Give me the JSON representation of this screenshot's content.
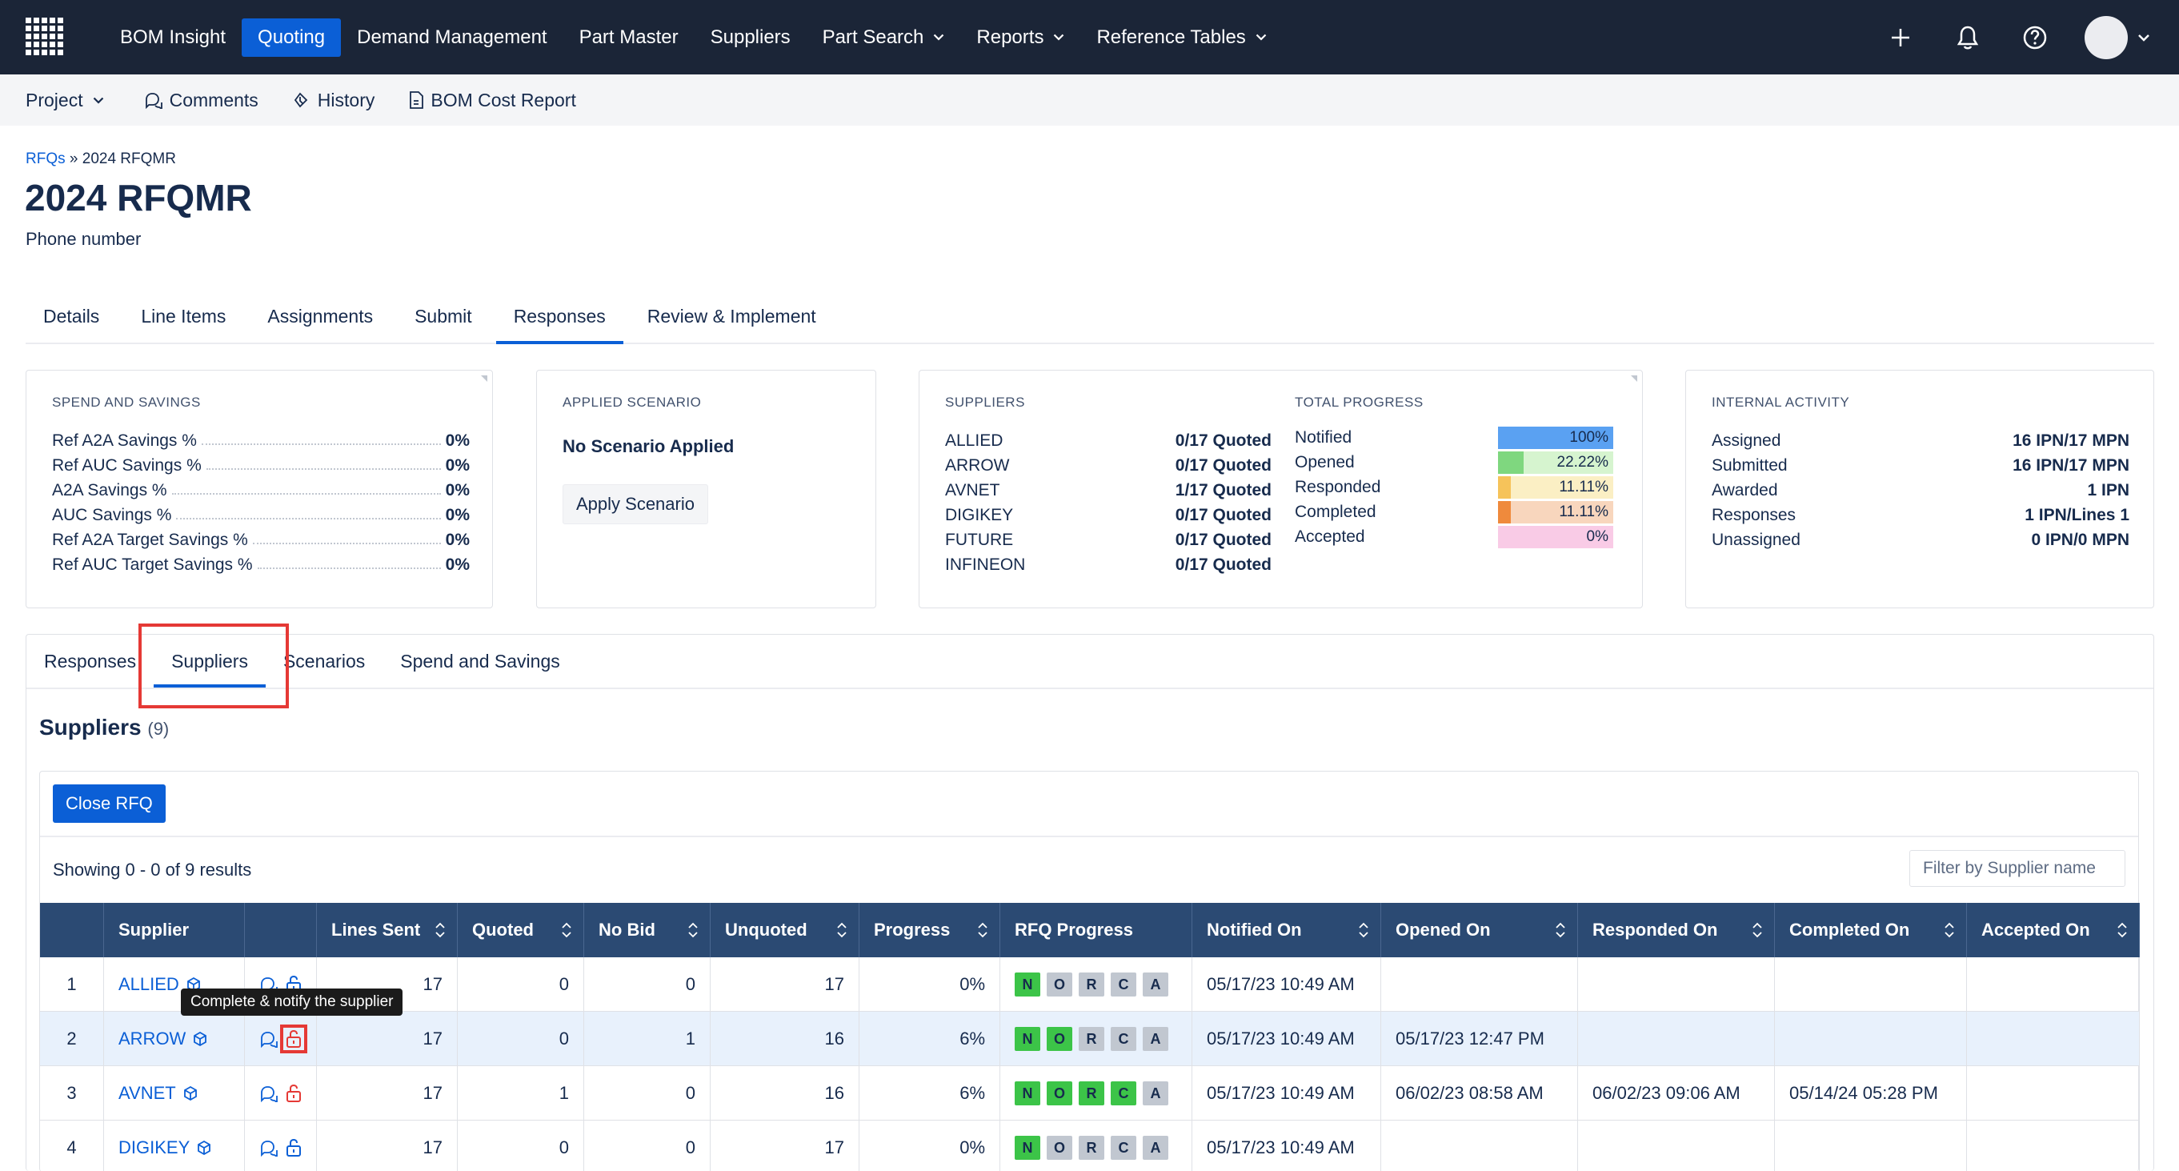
{
  "nav": {
    "items": [
      {
        "label": "BOM Insight",
        "active": false,
        "dropdown": false
      },
      {
        "label": "Quoting",
        "active": true,
        "dropdown": false
      },
      {
        "label": "Demand Management",
        "active": false,
        "dropdown": false
      },
      {
        "label": "Part Master",
        "active": false,
        "dropdown": false
      },
      {
        "label": "Suppliers",
        "active": false,
        "dropdown": false
      },
      {
        "label": "Part Search",
        "active": false,
        "dropdown": true
      },
      {
        "label": "Reports",
        "active": false,
        "dropdown": true
      },
      {
        "label": "Reference Tables",
        "active": false,
        "dropdown": true
      }
    ],
    "right_icons": [
      "plus-icon",
      "bell-icon",
      "help-icon"
    ]
  },
  "subnav": {
    "project": "Project",
    "comments": "Comments",
    "history": "History",
    "bom_cost_report": "BOM Cost Report"
  },
  "breadcrumb": {
    "link": "RFQs",
    "sep": "»",
    "current": "2024 RFQMR"
  },
  "page": {
    "title": "2024 RFQMR",
    "subtitle": "Phone number"
  },
  "main_tabs": [
    "Details",
    "Line Items",
    "Assignments",
    "Submit",
    "Responses",
    "Review & Implement"
  ],
  "main_tab_active": "Responses",
  "spend_card": {
    "title": "SPEND AND SAVINGS",
    "rows": [
      {
        "label": "Ref A2A Savings %",
        "value": "0%"
      },
      {
        "label": "Ref AUC Savings %",
        "value": "0%"
      },
      {
        "label": "A2A Savings %",
        "value": "0%"
      },
      {
        "label": "AUC Savings %",
        "value": "0%"
      },
      {
        "label": "Ref A2A Target Savings %",
        "value": "0%"
      },
      {
        "label": "Ref AUC Target Savings %",
        "value": "0%"
      }
    ]
  },
  "scenario_card": {
    "title": "APPLIED SCENARIO",
    "status": "No Scenario Applied",
    "button": "Apply Scenario"
  },
  "suppliers_card": {
    "title": "SUPPLIERS",
    "rows": [
      {
        "label": "ALLIED",
        "value": "0/17 Quoted"
      },
      {
        "label": "ARROW",
        "value": "0/17 Quoted"
      },
      {
        "label": "AVNET",
        "value": "1/17 Quoted"
      },
      {
        "label": "DIGIKEY",
        "value": "0/17 Quoted"
      },
      {
        "label": "FUTURE",
        "value": "0/17 Quoted"
      },
      {
        "label": "INFINEON",
        "value": "0/17 Quoted"
      }
    ]
  },
  "progress_card": {
    "title": "TOTAL PROGRESS",
    "rows": [
      {
        "label": "Notified",
        "value": "100%",
        "fraction": 1.0,
        "color": "#5aa1f2",
        "bg": "#5aa1f2"
      },
      {
        "label": "Opened",
        "value": "22.22%",
        "fraction": 0.2222,
        "color": "#7fd77f",
        "bg": "#d6f4cf"
      },
      {
        "label": "Responded",
        "value": "11.11%",
        "fraction": 0.1111,
        "color": "#f6c35a",
        "bg": "#fbefc4"
      },
      {
        "label": "Completed",
        "value": "11.11%",
        "fraction": 0.1111,
        "color": "#ef8a3c",
        "bg": "#f8d6bd"
      },
      {
        "label": "Accepted",
        "value": "0%",
        "fraction": 0,
        "color": "#f4a6d4",
        "bg": "#f9cbe6"
      }
    ]
  },
  "activity_card": {
    "title": "INTERNAL ACTIVITY",
    "rows": [
      {
        "label": "Assigned",
        "value": "16 IPN/17 MPN"
      },
      {
        "label": "Submitted",
        "value": "16 IPN/17 MPN"
      },
      {
        "label": "Awarded",
        "value": "1 IPN"
      },
      {
        "label": "Responses",
        "value": "1 IPN/Lines 1"
      },
      {
        "label": "Unassigned",
        "value": "0 IPN/0 MPN"
      }
    ]
  },
  "sub_tabs": [
    "Responses",
    "Suppliers",
    "Scenarios",
    "Spend and Savings"
  ],
  "sub_tab_active": "Suppliers",
  "suppliers_section": {
    "title": "Suppliers",
    "count": "(9)",
    "close_button": "Close RFQ",
    "showing": "Showing 0 - 0 of 9 results",
    "filter_placeholder": "Filter by Supplier name"
  },
  "table": {
    "columns": [
      "",
      "Supplier",
      "",
      "Lines Sent",
      "Quoted",
      "No Bid",
      "Unquoted",
      "Progress",
      "RFQ Progress",
      "Notified On",
      "Opened On",
      "Responded On",
      "Completed On",
      "Accepted On"
    ],
    "rows": [
      {
        "idx": "1",
        "supplier": "ALLIED",
        "lines_sent": "17",
        "quoted": "0",
        "no_bid": "0",
        "unquoted": "17",
        "progress": "0%",
        "stages": [
          true,
          false,
          false,
          false,
          false
        ],
        "notified": "05/17/23 10:49 AM",
        "opened": "",
        "responded": "",
        "completed": "",
        "accepted": "",
        "lock_color": "#0b5fd6"
      },
      {
        "idx": "2",
        "supplier": "ARROW",
        "lines_sent": "17",
        "quoted": "0",
        "no_bid": "1",
        "unquoted": "16",
        "progress": "6%",
        "stages": [
          true,
          true,
          false,
          false,
          false
        ],
        "notified": "05/17/23 10:49 AM",
        "opened": "05/17/23 12:47 PM",
        "responded": "",
        "completed": "",
        "accepted": "",
        "lock_color": "#e53935"
      },
      {
        "idx": "3",
        "supplier": "AVNET",
        "lines_sent": "17",
        "quoted": "1",
        "no_bid": "0",
        "unquoted": "16",
        "progress": "6%",
        "stages": [
          true,
          true,
          true,
          true,
          false
        ],
        "notified": "05/17/23 10:49 AM",
        "opened": "06/02/23 08:58 AM",
        "responded": "06/02/23 09:06 AM",
        "completed": "05/14/24 05:28 PM",
        "accepted": "",
        "lock_color": "#e53935"
      },
      {
        "idx": "4",
        "supplier": "DIGIKEY",
        "lines_sent": "17",
        "quoted": "0",
        "no_bid": "0",
        "unquoted": "17",
        "progress": "0%",
        "stages": [
          true,
          false,
          false,
          false,
          false
        ],
        "notified": "05/17/23 10:49 AM",
        "opened": "",
        "responded": "",
        "completed": "",
        "accepted": "",
        "lock_color": "#0b5fd6"
      }
    ],
    "stage_letters": [
      "N",
      "O",
      "R",
      "C",
      "A"
    ]
  },
  "tooltip": "Complete & notify the supplier"
}
